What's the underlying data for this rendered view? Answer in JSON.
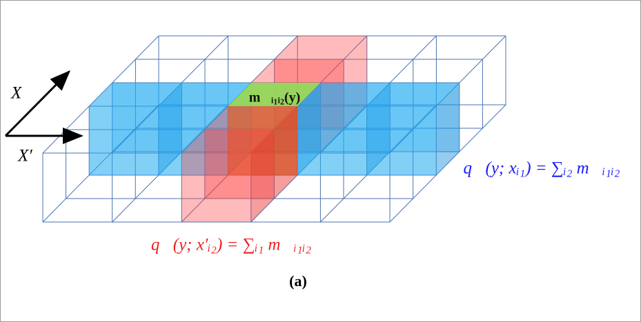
{
  "axes": {
    "x_label": "X",
    "x_prime_label": "X′"
  },
  "cell_label": "m⃗ᵢ₁ᵢ₂(y)",
  "row_sum": "q⃗(y; xᵢ₁) = ∑ᵢ₂ m⃗ᵢ₁ᵢ₂",
  "column_sum": "q⃗(y; x′ᵢ₂) = ∑ᵢ₁ m⃗ᵢ₁ᵢ₂",
  "caption": "(a)"
}
